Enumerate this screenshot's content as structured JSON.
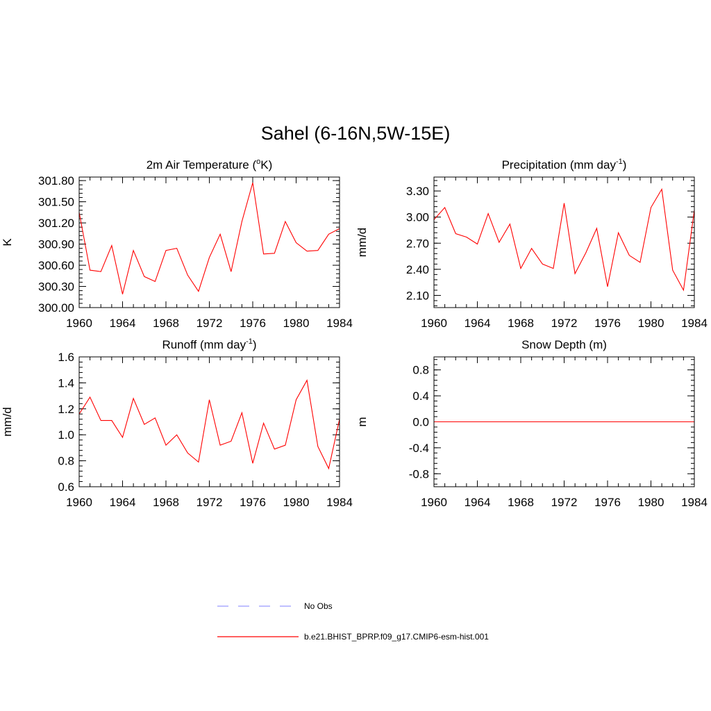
{
  "title": "Sahel (6-16N,5W-15E)",
  "colors": {
    "model_line": "#ff0000",
    "obs_line": "#9999ff",
    "axis": "#000000"
  },
  "legend": {
    "obs_label": "No Obs",
    "model_label": "b.e21.BHIST_BPRP.f09_g17.CMIP6-esm-hist.001"
  },
  "chart_data": [
    {
      "type": "line",
      "title": "2m Air Temperature (",
      "title_sup": "o",
      "title_post": "K)",
      "ylabel": "K",
      "xlim": [
        1960,
        1984
      ],
      "ylim": [
        300.0,
        301.85
      ],
      "x_ticks": [
        1960,
        1964,
        1968,
        1972,
        1976,
        1980,
        1984
      ],
      "y_ticks": [
        "300.00",
        "300.30",
        "300.60",
        "300.90",
        "301.20",
        "301.50",
        "301.80"
      ],
      "y_minor_step": 0.06,
      "grid": false,
      "series": [
        {
          "name": "b.e21.BHIST_BPRP.f09_g17.CMIP6-esm-hist.001",
          "x": [
            1960,
            1961,
            1962,
            1963,
            1964,
            1965,
            1966,
            1967,
            1968,
            1969,
            1970,
            1971,
            1972,
            1973,
            1974,
            1975,
            1976,
            1977,
            1978,
            1979,
            1980,
            1981,
            1982,
            1983,
            1984
          ],
          "values": [
            301.35,
            300.53,
            300.51,
            300.88,
            300.19,
            300.81,
            300.44,
            300.37,
            300.81,
            300.84,
            300.46,
            300.23,
            300.71,
            301.04,
            300.51,
            301.22,
            301.77,
            300.76,
            300.77,
            301.22,
            300.92,
            300.8,
            300.81,
            301.04,
            301.12
          ]
        }
      ]
    },
    {
      "type": "line",
      "title": "Precipitation (mm day",
      "title_sup": "-1",
      "title_post": ")",
      "ylabel": "mm/d",
      "xlim": [
        1960,
        1984
      ],
      "ylim": [
        1.96,
        3.46
      ],
      "x_ticks": [
        1960,
        1964,
        1968,
        1972,
        1976,
        1980,
        1984
      ],
      "y_ticks": [
        "2.10",
        "2.40",
        "2.70",
        "3.00",
        "3.30"
      ],
      "y_minor_step": 0.06,
      "grid": false,
      "series": [
        {
          "name": "b.e21.BHIST_BPRP.f09_g17.CMIP6-esm-hist.001",
          "x": [
            1960,
            1961,
            1962,
            1963,
            1964,
            1965,
            1966,
            1967,
            1968,
            1969,
            1970,
            1971,
            1972,
            1973,
            1974,
            1975,
            1976,
            1977,
            1978,
            1979,
            1980,
            1981,
            1982,
            1983,
            1984
          ],
          "values": [
            2.97,
            3.11,
            2.81,
            2.77,
            2.69,
            3.04,
            2.71,
            2.92,
            2.41,
            2.64,
            2.46,
            2.41,
            3.16,
            2.35,
            2.59,
            2.87,
            2.2,
            2.82,
            2.56,
            2.48,
            3.11,
            3.32,
            2.39,
            2.16,
            3.08
          ]
        }
      ]
    },
    {
      "type": "line",
      "title": "Runoff (mm day",
      "title_sup": "-1",
      "title_post": ")",
      "ylabel": "mm/d",
      "xlim": [
        1960,
        1984
      ],
      "ylim": [
        0.6,
        1.6
      ],
      "x_ticks": [
        1960,
        1964,
        1968,
        1972,
        1976,
        1980,
        1984
      ],
      "y_ticks": [
        "0.6",
        "0.8",
        "1.0",
        "1.2",
        "1.4",
        "1.6"
      ],
      "y_minor_step": 0.04,
      "grid": false,
      "series": [
        {
          "name": "b.e21.BHIST_BPRP.f09_g17.CMIP6-esm-hist.001",
          "x": [
            1960,
            1961,
            1962,
            1963,
            1964,
            1965,
            1966,
            1967,
            1968,
            1969,
            1970,
            1971,
            1972,
            1973,
            1974,
            1975,
            1976,
            1977,
            1978,
            1979,
            1980,
            1981,
            1982,
            1983,
            1984
          ],
          "values": [
            1.16,
            1.29,
            1.11,
            1.11,
            0.98,
            1.28,
            1.08,
            1.13,
            0.92,
            1.0,
            0.86,
            0.79,
            1.27,
            0.92,
            0.95,
            1.17,
            0.78,
            1.09,
            0.89,
            0.92,
            1.27,
            1.42,
            0.91,
            0.74,
            1.12
          ]
        }
      ]
    },
    {
      "type": "line",
      "title": "Snow Depth (m)",
      "title_sup": "",
      "title_post": "",
      "ylabel": "m",
      "xlim": [
        1960,
        1984
      ],
      "ylim": [
        -1.0,
        1.0
      ],
      "x_ticks": [
        1960,
        1964,
        1968,
        1972,
        1976,
        1980,
        1984
      ],
      "y_ticks": [
        "-0.8",
        "-0.4",
        "0.0",
        "0.4",
        "0.8"
      ],
      "y_minor_step": 0.08,
      "grid": false,
      "series": [
        {
          "name": "b.e21.BHIST_BPRP.f09_g17.CMIP6-esm-hist.001",
          "x": [
            1960,
            1984
          ],
          "values": [
            0.0,
            0.0
          ]
        }
      ]
    }
  ]
}
